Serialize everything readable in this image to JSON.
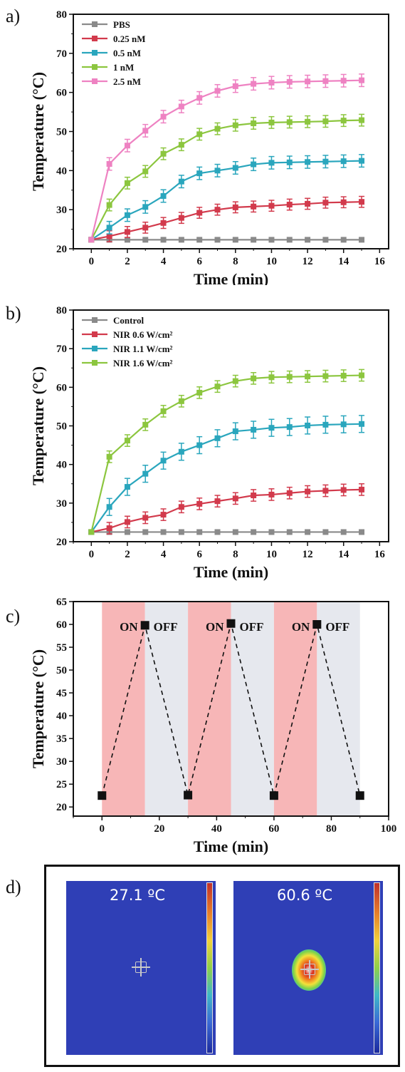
{
  "panels": {
    "a_label": "a)",
    "b_label": "b)",
    "c_label": "c)",
    "d_label": "d)"
  },
  "chart_data": [
    {
      "type": "line",
      "xlabel": "Time (min)",
      "ylabel": "Temperature (°C)",
      "xlim": [
        -1,
        16.5
      ],
      "ylim": [
        20,
        80
      ],
      "xticks": [
        0,
        2,
        4,
        6,
        8,
        10,
        12,
        14,
        16
      ],
      "yticks": [
        20,
        30,
        40,
        50,
        60,
        70,
        80
      ],
      "legend_position": "top-left",
      "x": [
        0,
        1,
        2,
        3,
        4,
        5,
        6,
        7,
        8,
        9,
        10,
        11,
        12,
        13,
        14,
        15
      ],
      "series": [
        {
          "name": "PBS",
          "color": "#8a8a8a",
          "values": [
            22.3,
            22.3,
            22.3,
            22.3,
            22.3,
            22.3,
            22.3,
            22.3,
            22.3,
            22.3,
            22.3,
            22.3,
            22.3,
            22.3,
            22.3,
            22.3
          ],
          "err": 0.3
        },
        {
          "name": "0.25 nM",
          "color": "#d23a4c",
          "values": [
            22.3,
            23.2,
            24.3,
            25.4,
            26.6,
            27.9,
            29.2,
            30.0,
            30.6,
            30.8,
            31.0,
            31.3,
            31.5,
            31.8,
            31.9,
            32.0
          ],
          "err": 1.4
        },
        {
          "name": "0.5 nM",
          "color": "#2aa6bd",
          "values": [
            22.3,
            25.4,
            28.6,
            30.7,
            33.5,
            37.2,
            39.3,
            40.0,
            40.7,
            41.6,
            42.0,
            42.1,
            42.2,
            42.3,
            42.4,
            42.5
          ],
          "err": 1.6
        },
        {
          "name": "1 nM",
          "color": "#8cc63f",
          "values": [
            22.3,
            31.2,
            36.8,
            39.8,
            44.3,
            46.6,
            49.3,
            50.7,
            51.6,
            52.1,
            52.3,
            52.4,
            52.5,
            52.6,
            52.8,
            52.9
          ],
          "err": 1.5
        },
        {
          "name": "2.5 nM",
          "color": "#ee82c2",
          "values": [
            22.3,
            41.7,
            46.4,
            50.2,
            53.8,
            56.4,
            58.6,
            60.4,
            61.6,
            62.2,
            62.5,
            62.7,
            62.8,
            62.9,
            63.0,
            63.1
          ],
          "err": 1.6
        }
      ]
    },
    {
      "type": "line",
      "xlabel": "Time (min)",
      "ylabel": "Temperature (°C)",
      "xlim": [
        -1,
        16.5
      ],
      "ylim": [
        20,
        80
      ],
      "xticks": [
        0,
        2,
        4,
        6,
        8,
        10,
        12,
        14,
        16
      ],
      "yticks": [
        20,
        30,
        40,
        50,
        60,
        70,
        80
      ],
      "legend_position": "top-left",
      "x": [
        0,
        1,
        2,
        3,
        4,
        5,
        6,
        7,
        8,
        9,
        10,
        11,
        12,
        13,
        14,
        15
      ],
      "series": [
        {
          "name": "Control",
          "color": "#8a8a8a",
          "values": [
            22.5,
            22.5,
            22.5,
            22.5,
            22.5,
            22.5,
            22.5,
            22.5,
            22.5,
            22.5,
            22.5,
            22.5,
            22.5,
            22.5,
            22.5,
            22.5
          ],
          "err": 0.3
        },
        {
          "name": "NIR 0.6 W/cm²",
          "color": "#d23a4c",
          "values": [
            22.5,
            23.5,
            25.1,
            26.2,
            27.0,
            29.0,
            29.8,
            30.5,
            31.2,
            32.0,
            32.2,
            32.6,
            33.0,
            33.2,
            33.4,
            33.5
          ],
          "err": 1.5
        },
        {
          "name": "NIR 1.1 W/cm²",
          "color": "#2aa6bd",
          "values": [
            22.5,
            29.0,
            34.2,
            37.6,
            41.0,
            43.3,
            45.0,
            46.8,
            48.6,
            49.0,
            49.5,
            49.7,
            50.1,
            50.3,
            50.4,
            50.5
          ],
          "err": 2.2
        },
        {
          "name": "NIR 1.6 W/cm²",
          "color": "#8cc63f",
          "values": [
            22.5,
            42.0,
            46.2,
            50.3,
            53.8,
            56.4,
            58.6,
            60.2,
            61.6,
            62.3,
            62.6,
            62.7,
            62.8,
            62.9,
            63.0,
            63.1
          ],
          "err": 1.5
        }
      ]
    },
    {
      "type": "scatter",
      "xlabel": "Time (min)",
      "ylabel": "Temperature (°C)",
      "xlim": [
        -10,
        100
      ],
      "ylim": [
        18,
        65
      ],
      "xticks": [
        0,
        20,
        40,
        60,
        80,
        100
      ],
      "yticks": [
        20,
        25,
        30,
        35,
        40,
        45,
        50,
        55,
        60,
        65
      ],
      "x": [
        0,
        15,
        30,
        45,
        60,
        75,
        90
      ],
      "values": [
        22.5,
        59.8,
        22.6,
        60.2,
        22.5,
        60.0,
        22.5
      ],
      "bands": [
        {
          "from": 0,
          "to": 15,
          "label": "ON",
          "color": "#f7b6b7"
        },
        {
          "from": 15,
          "to": 30,
          "label": "OFF",
          "color": "#e6e8ee"
        },
        {
          "from": 30,
          "to": 45,
          "label": "ON",
          "color": "#f7b6b7"
        },
        {
          "from": 45,
          "to": 60,
          "label": "OFF",
          "color": "#e6e8ee"
        },
        {
          "from": 60,
          "to": 75,
          "label": "ON",
          "color": "#f7b6b7"
        },
        {
          "from": 75,
          "to": 90,
          "label": "OFF",
          "color": "#e6e8ee"
        }
      ]
    }
  ],
  "thermal": {
    "left_temp": "27.1 ºC",
    "right_temp": "60.6 ºC"
  }
}
